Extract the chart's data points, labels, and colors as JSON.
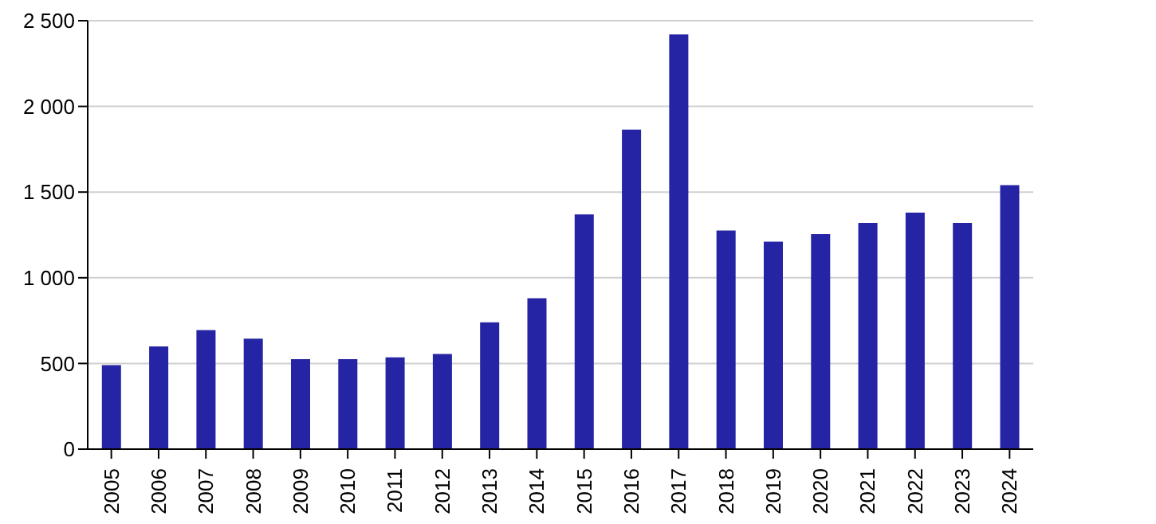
{
  "chart_data": {
    "type": "bar",
    "categories": [
      "2005",
      "2006",
      "2007",
      "2008",
      "2009",
      "2010",
      "2011",
      "2012",
      "2013",
      "2014",
      "2015",
      "2016",
      "2017",
      "2018",
      "2019",
      "2020",
      "2021",
      "2022",
      "2023",
      "2024"
    ],
    "values": [
      490,
      600,
      695,
      645,
      525,
      525,
      535,
      555,
      740,
      880,
      1370,
      1865,
      2420,
      1275,
      1210,
      1255,
      1320,
      1380,
      1320,
      1540
    ],
    "color": "#2424a4",
    "ylim": [
      0,
      2500
    ],
    "yticks": [
      0,
      500,
      {
        "value": 1000,
        "label": "1 000"
      },
      {
        "value": 1500,
        "label": "1 500"
      },
      {
        "value": 2000,
        "label": "2 000"
      },
      {
        "value": 2500,
        "label": "2 500"
      }
    ],
    "grid": "y"
  }
}
